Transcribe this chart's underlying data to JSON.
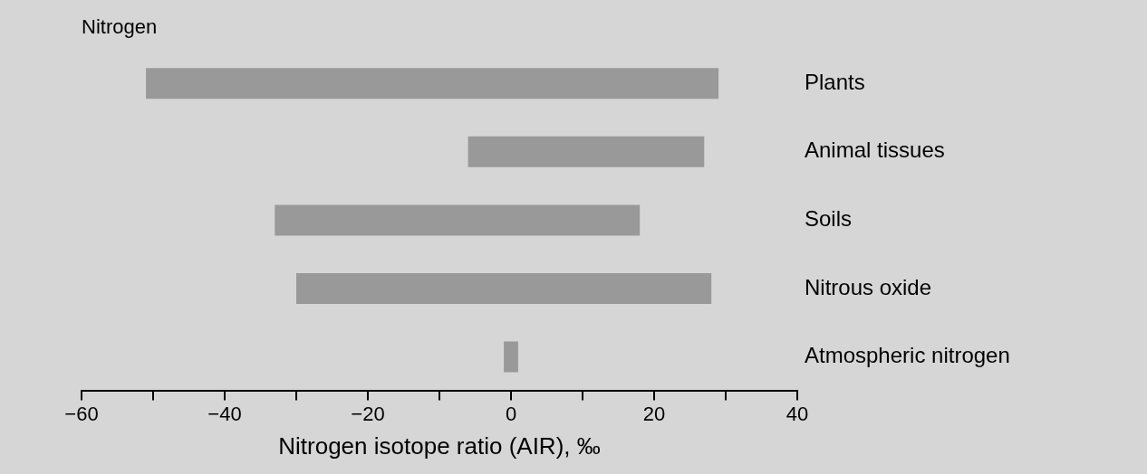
{
  "chart_data": {
    "type": "bar",
    "orientation": "horizontal",
    "title": "Nitrogen",
    "xlabel": "Nitrogen isotope ratio (AIR), ‰",
    "categories": [
      "Plants",
      "Animal tissues",
      "Soils",
      "Nitrous oxide",
      "Atmospheric nitrogen"
    ],
    "base": [
      -51,
      -6,
      -33,
      -30,
      -1
    ],
    "values": [
      80,
      33,
      51,
      58,
      2
    ],
    "color": "#999999",
    "xlim": [
      -60,
      40
    ],
    "xticks": [
      -60,
      {
        "value": -50,
        "label": null
      },
      -40,
      {
        "value": -30,
        "label": null
      },
      -20,
      {
        "value": -10,
        "label": null
      },
      0,
      {
        "value": 10,
        "label": null
      },
      20,
      {
        "value": 30,
        "label": null
      },
      40
    ],
    "grid": false,
    "legend": false
  }
}
